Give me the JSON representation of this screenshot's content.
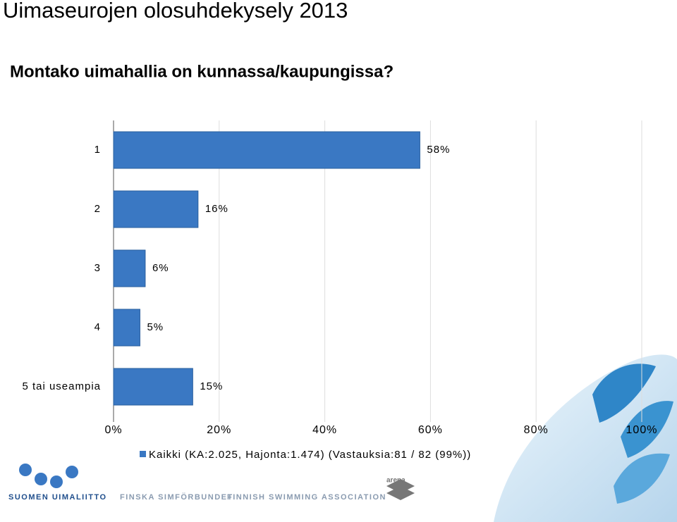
{
  "chart_data": {
    "type": "hbar",
    "title": "Uimaseurojen olosuhdekysely 2013",
    "subtitle": "Montako uimahallia on kunnassa/kaupungissa?",
    "categories": [
      "1",
      "2",
      "3",
      "4",
      "5 tai useampia"
    ],
    "series": [
      {
        "name": "Kaikki (KA:2.025, Hajonta:1.474) (Vastauksia:81 / 82 (99%))",
        "color": "#3a78c3",
        "values": [
          58,
          16,
          6,
          5,
          15
        ],
        "value_labels": [
          "58%",
          "16%",
          "6%",
          "5%",
          "15%"
        ]
      }
    ],
    "xlim": [
      0,
      100
    ],
    "xticks": [
      {
        "value": 0,
        "label": "0%"
      },
      {
        "value": 20,
        "label": "20%"
      },
      {
        "value": 40,
        "label": "40%"
      },
      {
        "value": 60,
        "label": "60%"
      },
      {
        "value": 80,
        "label": "80%"
      },
      {
        "value": 100,
        "label": "100%"
      }
    ],
    "grid": true
  },
  "footer": {
    "org_fi": "SUOMEN UIMALIITTO",
    "org_sv": "FINSKA SIMFÖRBUNDET",
    "org_en": "FINNISH SWIMMING ASSOCIATION",
    "sponsor": "arena"
  }
}
